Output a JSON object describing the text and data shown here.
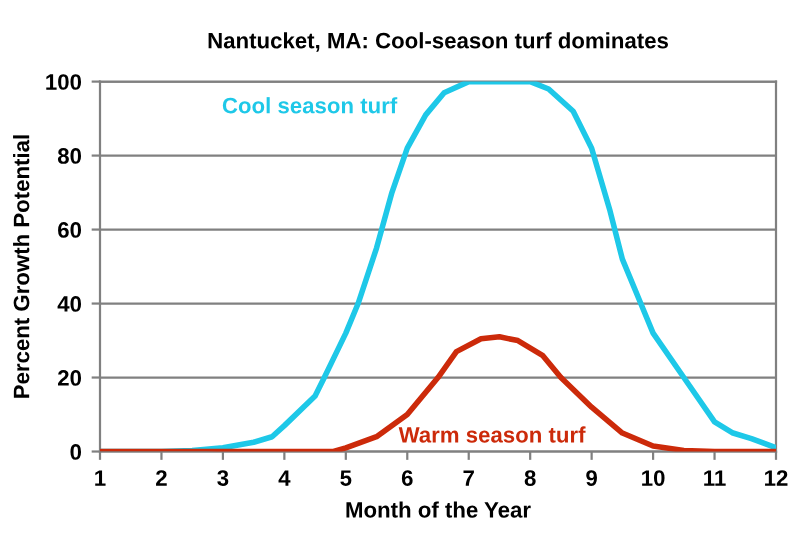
{
  "chart_data": {
    "type": "line",
    "title": "Nantucket, MA: Cool-season turf dominates",
    "xlabel": "Month of the Year",
    "ylabel": "Percent Growth Potential",
    "xlim": [
      1,
      12
    ],
    "xticks": [
      1,
      2,
      3,
      4,
      5,
      6,
      7,
      8,
      9,
      10,
      11,
      12
    ],
    "ylim": [
      0,
      100
    ],
    "yticks": [
      0,
      20,
      40,
      60,
      80,
      100
    ],
    "grid": "y",
    "marker": "none",
    "line_style": "solid",
    "series": [
      {
        "name": "Cool season turf",
        "color": "#1ec8e8",
        "x": [
          1,
          2,
          2.5,
          3,
          3.5,
          3.8,
          4,
          4.5,
          4.65,
          5,
          5.2,
          5.5,
          5.75,
          6,
          6.3,
          6.6,
          7,
          8,
          8.3,
          8.7,
          9,
          9.3,
          9.5,
          9.8,
          10,
          10.5,
          11,
          11.3,
          11.6,
          12
        ],
        "values": [
          0,
          0,
          0.3,
          1,
          2.5,
          4,
          7,
          15,
          20,
          32,
          40,
          55,
          70,
          82,
          91,
          97,
          100,
          100,
          98,
          92,
          82,
          65,
          52,
          40,
          32,
          20,
          8,
          5,
          3.5,
          1
        ]
      },
      {
        "name": "Warm season turf",
        "color": "#cc2a0a",
        "x": [
          1,
          2,
          3,
          4,
          4.8,
          5,
          5.5,
          6,
          6.5,
          6.8,
          7.2,
          7.5,
          7.8,
          8.2,
          8.5,
          9,
          9.5,
          10,
          10.5,
          11,
          12
        ],
        "values": [
          0,
          0,
          0,
          0,
          0,
          1,
          4,
          10,
          20,
          27,
          30.5,
          31,
          30,
          26,
          20,
          12,
          5,
          1.5,
          0.3,
          0,
          0
        ]
      }
    ]
  }
}
